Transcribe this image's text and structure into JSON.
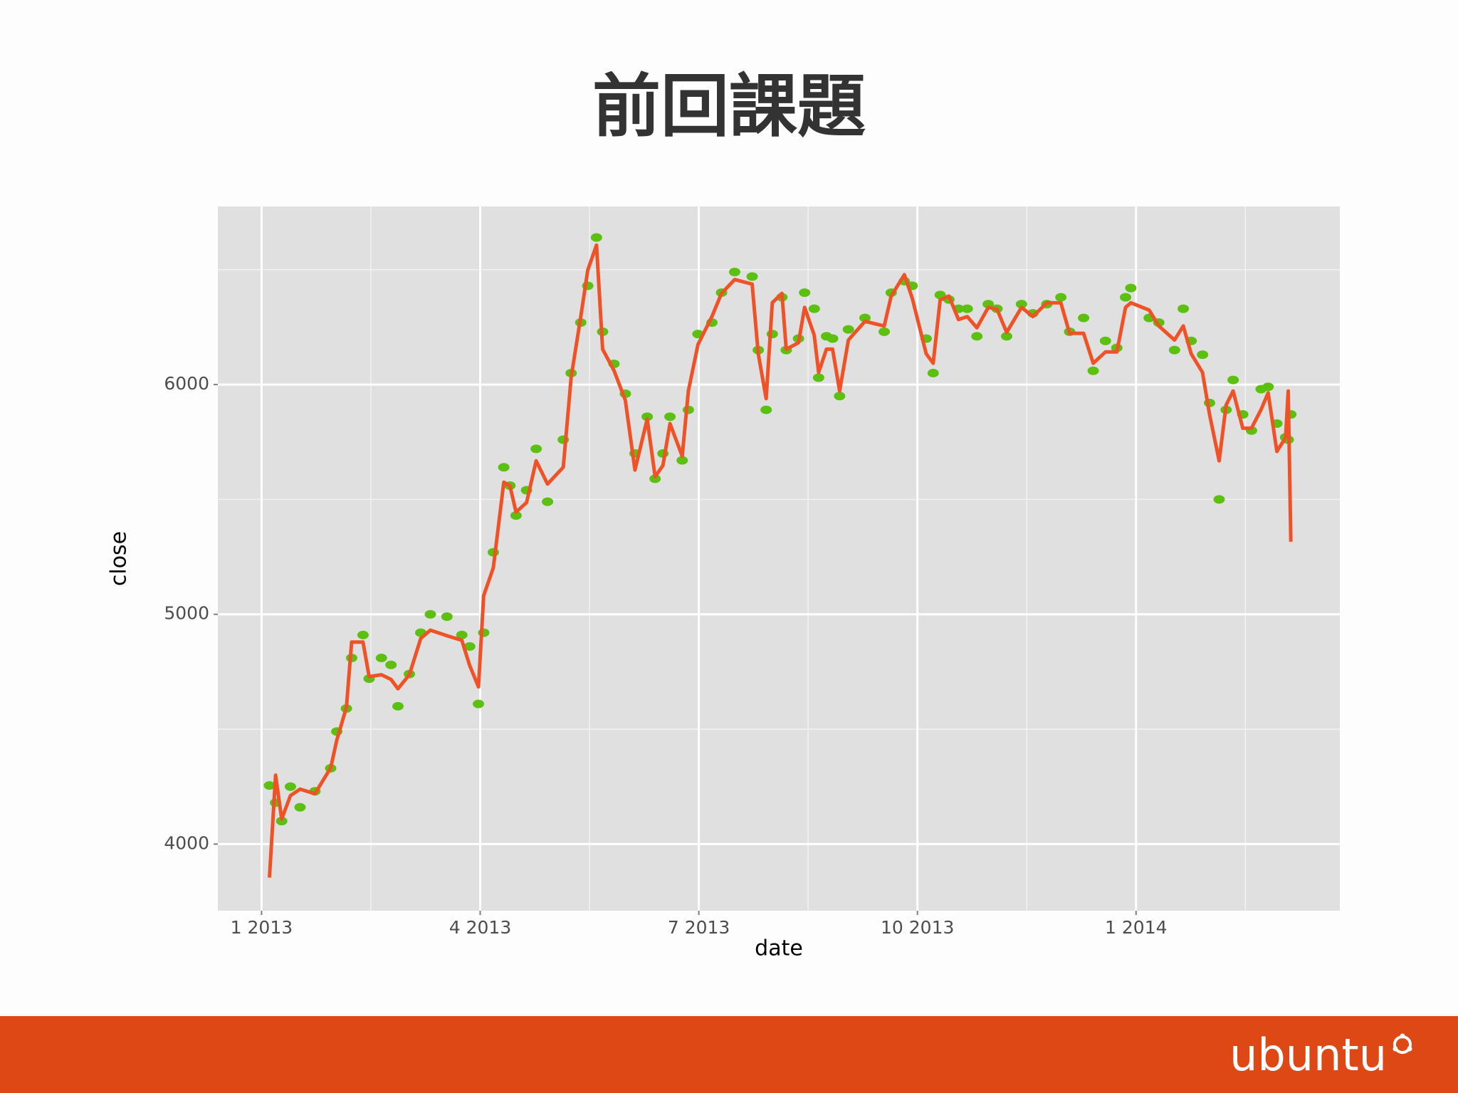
{
  "chart_data": {
    "type": "line",
    "title": "前回課題",
    "x_label": "date",
    "y_label": "close",
    "xlim": [
      2012.95,
      2014.233
    ],
    "ylim": [
      3710,
      6775
    ],
    "xticks": [
      {
        "value": 2013,
        "label": "1 2013"
      },
      {
        "value": 2013.25,
        "label": "4 2013"
      },
      {
        "value": 2013.5,
        "label": "7 2013"
      },
      {
        "value": 2013.75,
        "label": "10 2013"
      },
      {
        "value": 2014,
        "label": "1 2014"
      }
    ],
    "yticks": [
      4000,
      5000,
      6000
    ],
    "grid": true,
    "minor_grid": true,
    "panel_color": "#e0e0e0",
    "x": [
      2013.009,
      2013.016,
      2013.023,
      2013.033,
      2013.044,
      2013.061,
      2013.079,
      2013.086,
      2013.097,
      2013.103,
      2013.116,
      2013.123,
      2013.137,
      2013.148,
      2013.156,
      2013.169,
      2013.182,
      2013.193,
      2013.212,
      2013.229,
      2013.238,
      2013.248,
      2013.254,
      2013.265,
      2013.277,
      2013.284,
      2013.291,
      2013.303,
      2013.314,
      2013.327,
      2013.345,
      2013.354,
      2013.365,
      2013.373,
      2013.383,
      2013.39,
      2013.403,
      2013.416,
      2013.427,
      2013.441,
      2013.45,
      2013.459,
      2013.467,
      2013.481,
      2013.488,
      2013.499,
      2013.515,
      2013.526,
      2013.541,
      2013.561,
      2013.568,
      2013.577,
      2013.584,
      2013.595,
      2013.6,
      2013.614,
      2013.621,
      2013.632,
      2013.637,
      2013.646,
      2013.653,
      2013.661,
      2013.671,
      2013.69,
      2013.712,
      2013.72,
      2013.735,
      2013.744,
      2013.76,
      2013.768,
      2013.776,
      2013.786,
      2013.797,
      2013.807,
      2013.818,
      2013.831,
      2013.841,
      2013.852,
      2013.869,
      2013.882,
      2013.898,
      2013.914,
      2013.924,
      2013.94,
      2013.951,
      2013.965,
      2013.978,
      2013.988,
      2013.994,
      2014.015,
      2014.026,
      2014.044,
      2014.054,
      2014.063,
      2014.076,
      2014.084,
      2014.095,
      2014.103,
      2014.111,
      2014.122,
      2014.132,
      2014.143,
      2014.151,
      2014.161,
      2014.171,
      2014.174,
      2014.177
    ],
    "series": [
      {
        "style": "points",
        "color": "#5cc010",
        "values": [
          4255,
          4180,
          4100,
          4250,
          4160,
          4230,
          4330,
          4490,
          4590,
          4810,
          4910,
          4720,
          4810,
          4780,
          4600,
          4740,
          4920,
          5000,
          4990,
          4910,
          4860,
          4610,
          4920,
          5270,
          5640,
          5560,
          5430,
          5540,
          5720,
          5490,
          5760,
          6050,
          6270,
          6430,
          6640,
          6230,
          6090,
          5960,
          5700,
          5860,
          5590,
          5700,
          5860,
          5670,
          5890,
          6220,
          6270,
          6400,
          6490,
          6470,
          6150,
          5890,
          6220,
          6380,
          6150,
          6200,
          6400,
          6330,
          6030,
          6210,
          6200,
          5950,
          6240,
          6290,
          6230,
          6400,
          6450,
          6430,
          6200,
          6050,
          6390,
          6370,
          6330,
          6330,
          6210,
          6350,
          6330,
          6210,
          6350,
          6310,
          6350,
          6380,
          6230,
          6290,
          6060,
          6190,
          6160,
          6380,
          6420,
          6290,
          6270,
          6150,
          6330,
          6190,
          6130,
          5920,
          5500,
          5890,
          6020,
          5870,
          5800,
          5980,
          5990,
          5830,
          5770,
          5760,
          5870
        ]
      },
      {
        "style": "line",
        "color": "#f05228",
        "values": [
          3854,
          4300,
          4109,
          4211,
          4239,
          4219,
          4332,
          4453,
          4595,
          4879,
          4879,
          4729,
          4737,
          4717,
          4676,
          4737,
          4895,
          4931,
          4907,
          4887,
          4777,
          4684,
          5081,
          5202,
          5575,
          5559,
          5445,
          5486,
          5668,
          5567,
          5640,
          6032,
          6296,
          6498,
          6607,
          6154,
          6061,
          5931,
          5628,
          5850,
          5599,
          5648,
          5830,
          5688,
          5972,
          6174,
          6296,
          6397,
          6457,
          6437,
          6134,
          5939,
          6356,
          6397,
          6154,
          6182,
          6336,
          6215,
          6053,
          6154,
          6154,
          5972,
          6194,
          6275,
          6255,
          6385,
          6478,
          6377,
          6134,
          6093,
          6368,
          6385,
          6283,
          6296,
          6247,
          6336,
          6328,
          6227,
          6336,
          6296,
          6356,
          6356,
          6223,
          6223,
          6093,
          6142,
          6142,
          6336,
          6356,
          6324,
          6255,
          6194,
          6255,
          6134,
          6053,
          5870,
          5668,
          5911,
          5972,
          5810,
          5810,
          5891,
          5964,
          5709,
          5769,
          5972,
          5316
        ]
      }
    ]
  },
  "footer": {
    "logo": "ubuntu",
    "color": "#dd4814"
  }
}
